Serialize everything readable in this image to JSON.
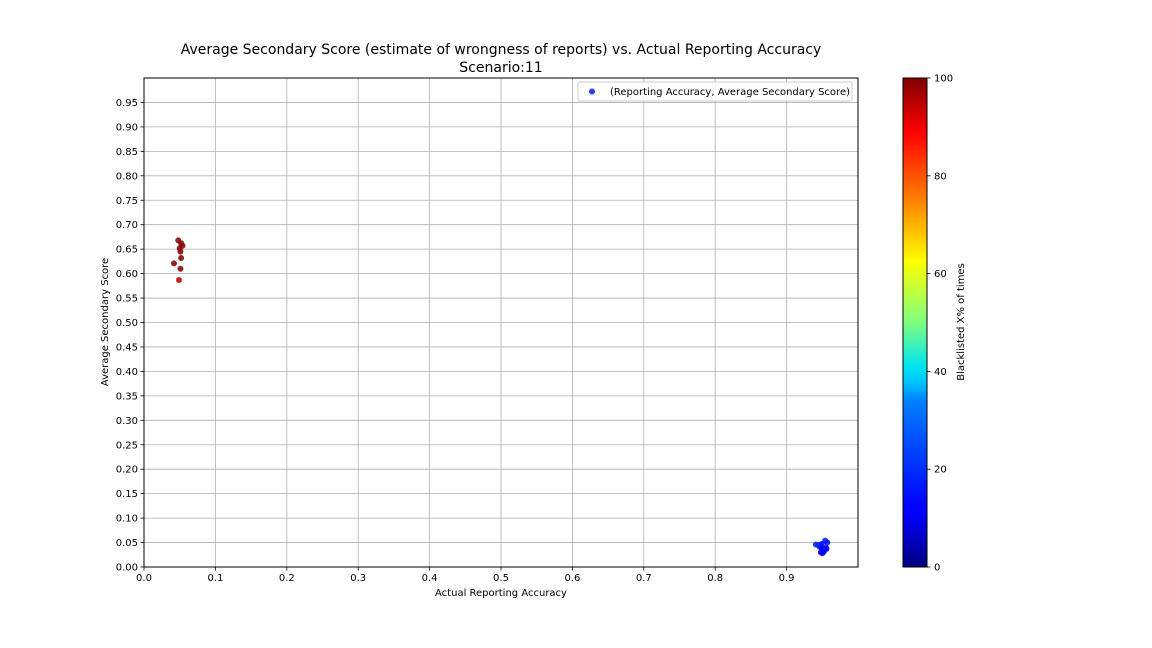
{
  "chart_data": {
    "type": "scatter",
    "title": "Average Secondary Score (estimate of wrongness of reports) vs. Actual Reporting Accuracy",
    "subtitle": "Scenario:11",
    "xlabel": "Actual Reporting Accuracy",
    "ylabel": "Average Secondary Score",
    "xlim": [
      0.0,
      1.0
    ],
    "ylim": [
      0.0,
      1.0
    ],
    "xticks": [
      "0.0",
      "0.1",
      "0.2",
      "0.3",
      "0.4",
      "0.5",
      "0.6",
      "0.7",
      "0.8",
      "0.9"
    ],
    "yticks": [
      "0.00",
      "0.05",
      "0.10",
      "0.15",
      "0.20",
      "0.25",
      "0.30",
      "0.35",
      "0.40",
      "0.45",
      "0.50",
      "0.55",
      "0.60",
      "0.65",
      "0.70",
      "0.75",
      "0.80",
      "0.85",
      "0.90",
      "0.95"
    ],
    "grid": true,
    "legend": {
      "placement": "top-right",
      "label": "(Reporting Accuracy, Average Secondary Score)",
      "color": "#2a3cf0"
    },
    "colorbar": {
      "label": "Blacklisted X% of times",
      "range": [
        0,
        100
      ],
      "ticks": [
        "0",
        "20",
        "40",
        "60",
        "80",
        "100"
      ],
      "colormap": "jet"
    },
    "series": [
      {
        "points": [
          {
            "x": 0.048,
            "y": 0.668,
            "c": 100
          },
          {
            "x": 0.052,
            "y": 0.662,
            "c": 100
          },
          {
            "x": 0.054,
            "y": 0.657,
            "c": 100
          },
          {
            "x": 0.05,
            "y": 0.652,
            "c": 100
          },
          {
            "x": 0.051,
            "y": 0.645,
            "c": 100
          },
          {
            "x": 0.052,
            "y": 0.632,
            "c": 100
          },
          {
            "x": 0.042,
            "y": 0.621,
            "c": 100
          },
          {
            "x": 0.051,
            "y": 0.61,
            "c": 100
          },
          {
            "x": 0.049,
            "y": 0.587,
            "c": 95
          },
          {
            "x": 0.941,
            "y": 0.046,
            "c": 18
          },
          {
            "x": 0.946,
            "y": 0.042,
            "c": 12
          },
          {
            "x": 0.949,
            "y": 0.038,
            "c": 10
          },
          {
            "x": 0.951,
            "y": 0.033,
            "c": 10
          },
          {
            "x": 0.948,
            "y": 0.03,
            "c": 8
          },
          {
            "x": 0.953,
            "y": 0.036,
            "c": 12
          },
          {
            "x": 0.955,
            "y": 0.04,
            "c": 14
          },
          {
            "x": 0.957,
            "y": 0.05,
            "c": 15
          },
          {
            "x": 0.954,
            "y": 0.054,
            "c": 16
          },
          {
            "x": 0.947,
            "y": 0.044,
            "c": 9
          },
          {
            "x": 0.95,
            "y": 0.028,
            "c": 8
          },
          {
            "x": 0.952,
            "y": 0.031,
            "c": 10
          },
          {
            "x": 0.956,
            "y": 0.037,
            "c": 11
          },
          {
            "x": 0.949,
            "y": 0.047,
            "c": 13
          },
          {
            "x": 0.944,
            "y": 0.045,
            "c": 20
          }
        ]
      }
    ]
  }
}
